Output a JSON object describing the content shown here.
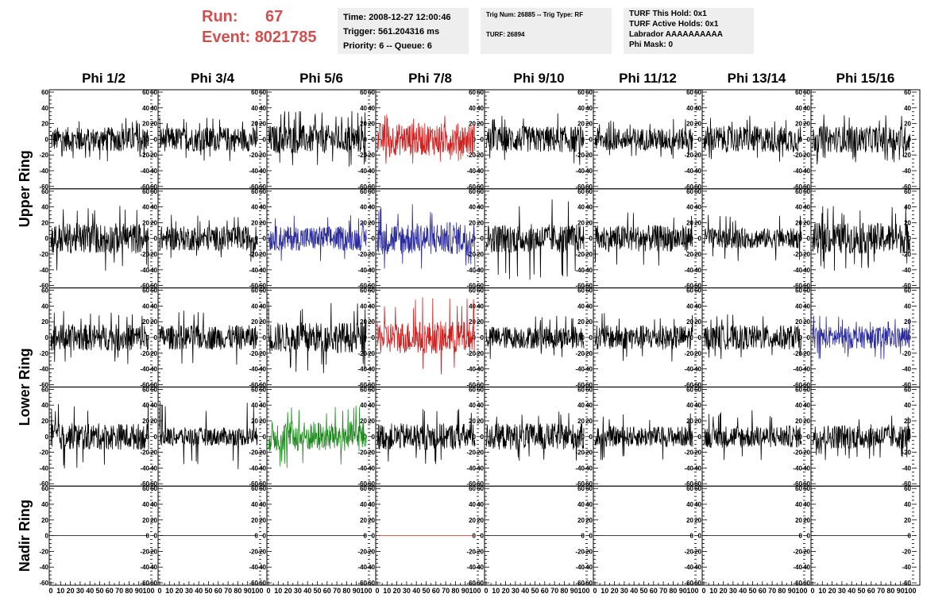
{
  "header": {
    "run_label": "Run:",
    "run_value": "67",
    "event_label": "Event:",
    "event_value": "8021785",
    "time_box": [
      "Time: 2008-12-27 12:00:46",
      "Trigger: 561.204316 ms",
      "Priority: 6 -- Queue: 6"
    ],
    "trig_box": [
      "Trig Num: 26885 -- Trig Type: RF",
      "TURF: 26894"
    ],
    "turf_box": [
      "TURF This Hold: 0x1",
      "TURF Active Holds: 0x1",
      "Labrador AAAAAAAAAA",
      "Phi Mask: 0"
    ]
  },
  "colors": {
    "header_red": "#d0504f",
    "trace_black": "#000000",
    "trace_red": "#d02020",
    "trace_blue": "#2a2a9a",
    "trace_green": "#1a8a1a",
    "box_bg": "#eeeeee"
  },
  "chart_data": {
    "type": "line",
    "columns": [
      "Phi 1/2",
      "Phi 3/4",
      "Phi 5/6",
      "Phi 7/8",
      "Phi 9/10",
      "Phi 11/12",
      "Phi 13/14",
      "Phi 15/16"
    ],
    "ring_labels": [
      "Upper Ring",
      "Lower Ring",
      "Nadir Ring"
    ],
    "rows": 5,
    "ring_row_spans": [
      [
        0,
        1
      ],
      [
        2,
        3
      ],
      [
        4,
        4
      ]
    ],
    "xlim": [
      0,
      100
    ],
    "ylim": [
      -60,
      60
    ],
    "x_tick_labels": [
      "0",
      "10",
      "20",
      "30",
      "40",
      "50",
      "60",
      "70",
      "80",
      "90",
      "100"
    ],
    "y_tick_labels": [
      "-60",
      "-40",
      "-20",
      "0",
      "20",
      "40",
      "60"
    ],
    "panels": [
      [
        {
          "color": "black",
          "amp": 12,
          "spike": 28
        },
        {
          "color": "black",
          "amp": 12,
          "spike": 28
        },
        {
          "color": "black",
          "amp": 14,
          "spike": 36
        },
        {
          "color": "red",
          "amp": 16,
          "spike": 32
        },
        {
          "color": "black",
          "amp": 13,
          "spike": 34
        },
        {
          "color": "black",
          "amp": 11,
          "spike": 26
        },
        {
          "color": "black",
          "amp": 13,
          "spike": 30
        },
        {
          "color": "black",
          "amp": 13,
          "spike": 32
        }
      ],
      [
        {
          "color": "black",
          "amp": 15,
          "spike": 42
        },
        {
          "color": "black",
          "amp": 12,
          "spike": 30
        },
        {
          "color": "blue",
          "amp": 12,
          "spike": 30
        },
        {
          "color": "blue",
          "amp": 16,
          "spike": 44
        },
        {
          "color": "black",
          "amp": 14,
          "spike": 56
        },
        {
          "color": "black",
          "amp": 13,
          "spike": 36
        },
        {
          "color": "black",
          "amp": 10,
          "spike": 30
        },
        {
          "color": "black",
          "amp": 15,
          "spike": 42
        }
      ],
      [
        {
          "color": "black",
          "amp": 13,
          "spike": 34
        },
        {
          "color": "black",
          "amp": 12,
          "spike": 36
        },
        {
          "color": "black",
          "amp": 15,
          "spike": 48
        },
        {
          "color": "red",
          "amp": 16,
          "spike": 52
        },
        {
          "color": "black",
          "amp": 11,
          "spike": 28
        },
        {
          "color": "black",
          "amp": 12,
          "spike": 32
        },
        {
          "color": "black",
          "amp": 12,
          "spike": 30
        },
        {
          "color": "blue",
          "amp": 11,
          "spike": 28
        }
      ],
      [
        {
          "color": "black",
          "amp": 13,
          "spike": 46
        },
        {
          "color": "black",
          "amp": 9,
          "spike": 44
        },
        {
          "color": "green",
          "amp": 15,
          "spike": 40
        },
        {
          "color": "black",
          "amp": 13,
          "spike": 36
        },
        {
          "color": "black",
          "amp": 13,
          "spike": 34
        },
        {
          "color": "black",
          "amp": 10,
          "spike": 30
        },
        {
          "color": "black",
          "amp": 11,
          "spike": 34
        },
        {
          "color": "black",
          "amp": 12,
          "spike": 30
        }
      ],
      [
        {
          "color": "black",
          "amp": 0,
          "spike": 0
        },
        {
          "color": "black",
          "amp": 0,
          "spike": 0
        },
        {
          "color": "black",
          "amp": 0,
          "spike": 0
        },
        {
          "color": "red",
          "amp": 0,
          "spike": 0
        },
        {
          "color": "black",
          "amp": 0,
          "spike": 0
        },
        {
          "color": "black",
          "amp": 0,
          "spike": 0
        },
        {
          "color": "black",
          "amp": 0,
          "spike": 0
        },
        {
          "color": "black",
          "amp": 0,
          "spike": 0
        }
      ]
    ],
    "samples_per_trace": 260,
    "grid": false,
    "legend": "none"
  }
}
